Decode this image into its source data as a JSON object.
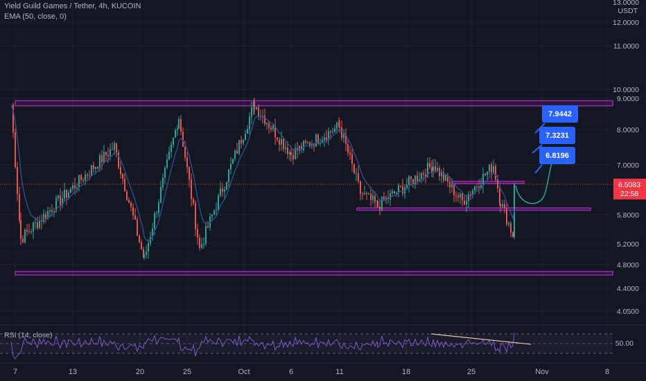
{
  "header": {
    "symbol_line": "Yield Guild Games / Tether, 4h, KUCOIN",
    "indicator_line": "EMA (50, close, 0)"
  },
  "price_axis": {
    "currency_top": "13.0000",
    "currency": "USDT",
    "ticks": [
      {
        "label": "12.0000",
        "value": 12.0
      },
      {
        "label": "11.0000",
        "value": 11.0
      },
      {
        "label": "10.0000",
        "value": 10.0
      },
      {
        "label": "9.0000",
        "value": 9.0
      },
      {
        "label": "8.0000",
        "value": 8.0
      },
      {
        "label": "7.0000",
        "value": 7.0
      },
      {
        "label": "5.8000",
        "value": 5.8
      },
      {
        "label": "5.2000",
        "value": 5.2
      },
      {
        "label": "4.8000",
        "value": 4.8
      },
      {
        "label": "4.4000",
        "value": 4.4
      },
      {
        "label": "4.0500",
        "value": 4.05
      }
    ],
    "last_price": "6.5083",
    "countdown": "22:58",
    "last_price_color": "#f23645"
  },
  "rsi": {
    "label": "RSI (14, close)",
    "axis_label": "50.00",
    "color": "#7e57c2"
  },
  "time_axis": [
    "7",
    "13",
    "20",
    "25",
    "Oct",
    "6",
    "11",
    "18",
    "25",
    "Nov",
    "8"
  ],
  "annotations": {
    "targets": [
      "7.9442",
      "7.3231",
      "6.8196"
    ],
    "target_color": "#2962ff",
    "zone_color": "#9c27b0"
  },
  "chart_data": {
    "type": "candlestick",
    "title": "Yield Guild Games / Tether, 4h, KUCOIN",
    "timeframe": "4h",
    "ylim": [
      4.05,
      13.0
    ],
    "y_scale": "log",
    "x_ticks": [
      "7",
      "13",
      "20",
      "25",
      "Oct",
      "6",
      "11",
      "18",
      "25",
      "Nov",
      "8"
    ],
    "overlay": "EMA (50, close, 0)",
    "last_price": 6.5083,
    "key_points": [
      {
        "x": "7",
        "price": 8.8
      },
      {
        "x": "10",
        "price": 5.3
      },
      {
        "x": "17",
        "price": 7.5
      },
      {
        "x": "20",
        "price": 4.9
      },
      {
        "x": "25",
        "price": 8.4
      },
      {
        "x": "28",
        "price": 5.1
      },
      {
        "x": "Oct",
        "price": 8.8
      },
      {
        "x": "3",
        "price": 7.3
      },
      {
        "x": "6",
        "price": 8.1
      },
      {
        "x": "11",
        "price": 6.3
      },
      {
        "x": "14",
        "price": 6.0
      },
      {
        "x": "16",
        "price": 7.0
      },
      {
        "x": "18",
        "price": 6.1
      },
      {
        "x": "20",
        "price": 7.0
      },
      {
        "x": "25",
        "price": 6.1
      },
      {
        "x": "27",
        "price": 5.3
      },
      {
        "x": "28",
        "price": 6.5083
      }
    ],
    "zones": [
      {
        "name": "resistance",
        "from": 8.75,
        "to": 8.92
      },
      {
        "name": "support",
        "from": 4.62,
        "to": 4.68
      },
      {
        "name": "local support",
        "from": 5.9,
        "to": 5.95
      },
      {
        "name": "local resistance",
        "from": 6.53,
        "to": 6.58
      }
    ],
    "targets": [
      7.9442,
      7.3231,
      6.8196
    ],
    "rsi_level": 50.0
  }
}
